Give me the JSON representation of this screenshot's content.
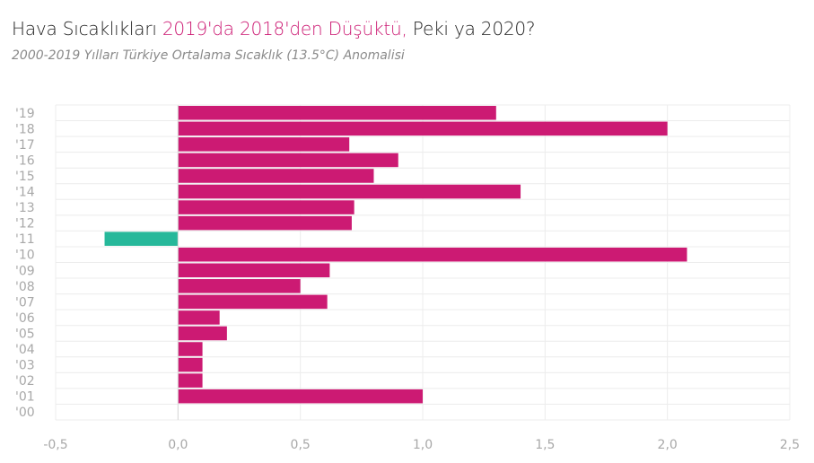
{
  "header": {
    "title_part1": "Hava Sıcaklıkları ",
    "title_highlight": "2019'da 2018'den Düşüktü,",
    "title_part2": " Peki ya 2020?",
    "subtitle": "2000-2019 Yılları Türkiye Ortalama Sıcaklık (13.5°C) Anomalisi"
  },
  "colors": {
    "positive": "#cc1a73",
    "negative": "#26b89a",
    "grid": "#ececec",
    "tick_text": "#a8a8a8"
  },
  "chart_data": {
    "type": "bar",
    "orientation": "horizontal",
    "title": "Hava Sıcaklıkları 2019'da 2018'den Düşüktü, Peki ya 2020?",
    "subtitle": "2000-2019 Yılları Türkiye Ortalama Sıcaklık (13.5°C) Anomalisi",
    "categories": [
      "'19",
      "'18",
      "'17",
      "'16",
      "'15",
      "'14",
      "'13",
      "'12",
      "'11",
      "'10",
      "'09",
      "'08",
      "'07",
      "'06",
      "'05",
      "'04",
      "'03",
      "'02",
      "'01",
      "'00"
    ],
    "values": [
      1.3,
      2.0,
      0.7,
      0.9,
      0.8,
      1.4,
      0.72,
      0.71,
      -0.3,
      2.08,
      0.62,
      0.5,
      0.61,
      0.17,
      0.2,
      0.1,
      0.1,
      0.1,
      1.0,
      0.0
    ],
    "xlim": [
      -0.5,
      2.5
    ],
    "xticks": [
      "-0,5",
      "0,0",
      "0,5",
      "1,0",
      "1,5",
      "2,0",
      "2,5"
    ],
    "xtick_values": [
      -0.5,
      0.0,
      0.5,
      1.0,
      1.5,
      2.0,
      2.5
    ],
    "grid": true,
    "legend": "none"
  }
}
